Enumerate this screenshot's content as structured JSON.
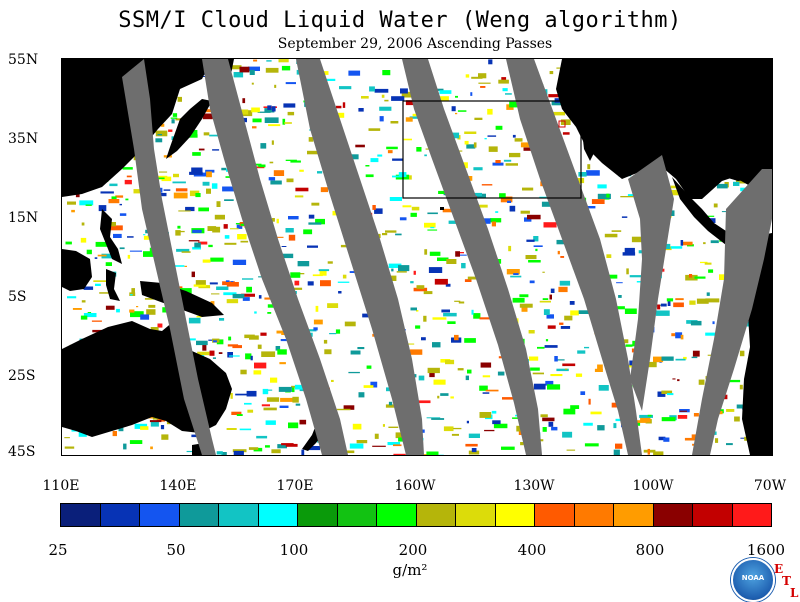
{
  "title": "SSM/I Cloud Liquid Water (Weng algorithm)",
  "subtitle": "September 29, 2006  Ascending Passes",
  "lat_labels": [
    "55N",
    "35N",
    "15N",
    "5S",
    "25S",
    "45S"
  ],
  "lon_labels": [
    "110E",
    "140E",
    "170E",
    "160W",
    "130W",
    "100W",
    "70W"
  ],
  "colorbar": {
    "labels": [
      "25",
      "50",
      "100",
      "200",
      "400",
      "800",
      "1600"
    ],
    "colors": [
      "#0a1f7a",
      "#0733b5",
      "#1455f0",
      "#0f9a9a",
      "#12c4c4",
      "#00ffff",
      "#0a9a0a",
      "#12c212",
      "#00ff00",
      "#b5b50a",
      "#dcdc0a",
      "#ffff00",
      "#ff5a00",
      "#ff7a00",
      "#ff9c00",
      "#8a0000",
      "#c20000",
      "#ff1a1a"
    ],
    "unit": "g/m²"
  },
  "map": {
    "land_color": "#000000",
    "gap_color": "#6e6e6e",
    "box_color": "#000000"
  },
  "logo": {
    "noaa_text": "NOAA",
    "etl_letters": [
      "E",
      "T",
      "L"
    ]
  }
}
